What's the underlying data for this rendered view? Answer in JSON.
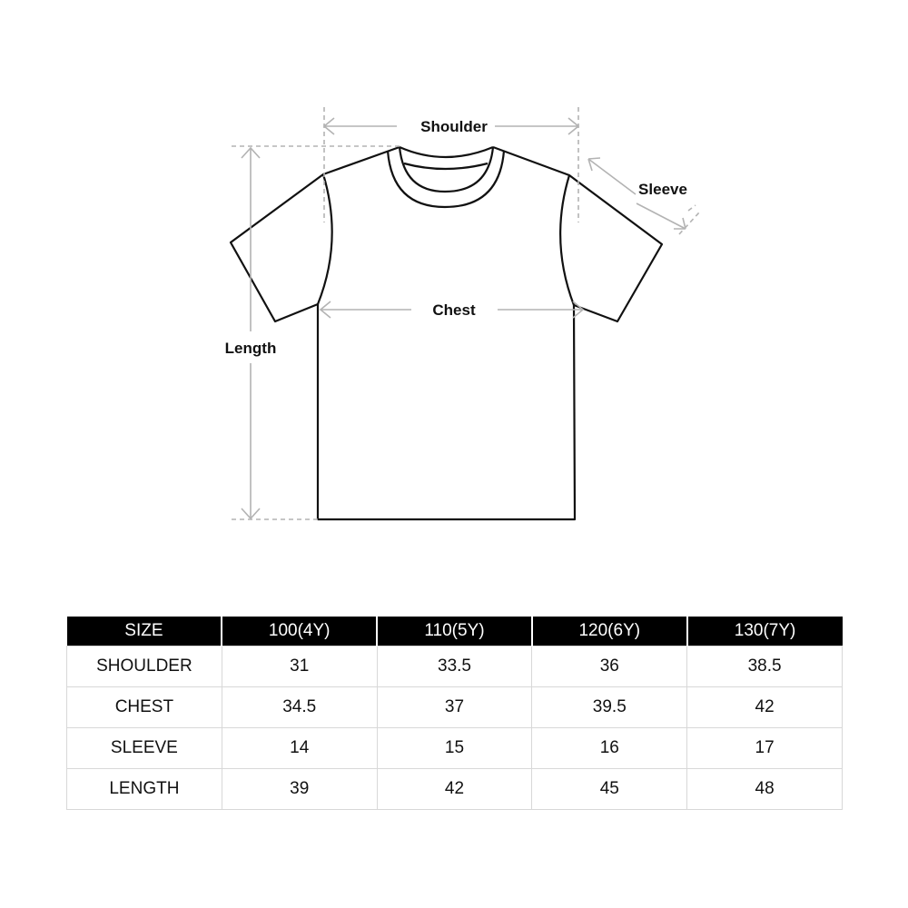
{
  "diagram": {
    "labels": {
      "shoulder": "Shoulder",
      "sleeve": "Sleeve",
      "chest": "Chest",
      "length": "Length"
    },
    "colors": {
      "outline": "#111111",
      "measure": "#b3b3b3"
    }
  },
  "table": {
    "headers": [
      "SIZE",
      "100(4Y)",
      "110(5Y)",
      "120(6Y)",
      "130(7Y)"
    ],
    "rows": [
      {
        "label": "SHOULDER",
        "values": [
          "31",
          "33.5",
          "36",
          "38.5"
        ]
      },
      {
        "label": "CHEST",
        "values": [
          "34.5",
          "37",
          "39.5",
          "42"
        ]
      },
      {
        "label": "SLEEVE",
        "values": [
          "14",
          "15",
          "16",
          "17"
        ]
      },
      {
        "label": "LENGTH",
        "values": [
          "39",
          "42",
          "45",
          "48"
        ]
      }
    ],
    "colors": {
      "header_bg": "#000000",
      "header_text": "#ffffff",
      "grid": "#d8d8d8"
    }
  }
}
